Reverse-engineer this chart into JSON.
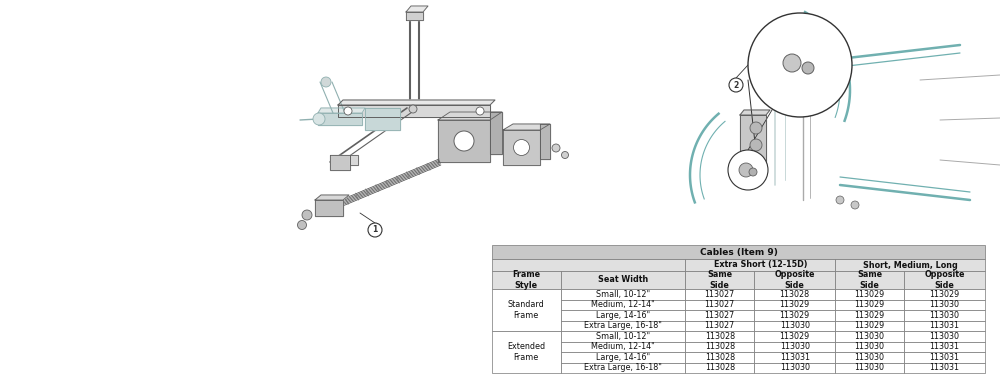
{
  "title": "Cables (Item 9)",
  "rows": [
    [
      "",
      "Small, 10-12\"",
      "113027",
      "113028",
      "113029",
      "113029"
    ],
    [
      "",
      "Medium, 12-14\"",
      "113027",
      "113029",
      "113029",
      "113030"
    ],
    [
      "Standard\nFrame",
      "Large, 14-16\"",
      "113027",
      "113029",
      "113029",
      "113030"
    ],
    [
      "",
      "Extra Large, 16-18\"",
      "113027",
      "113030",
      "113029",
      "113031"
    ],
    [
      "",
      "Small, 10-12\"",
      "113028",
      "113029",
      "113030",
      "113030"
    ],
    [
      "",
      "Medium, 12-14\"",
      "113028",
      "113030",
      "113030",
      "113031"
    ],
    [
      "Extended\nFrame",
      "Large, 14-16\"",
      "113028",
      "113031",
      "113030",
      "113031"
    ],
    [
      "",
      "Extra Large, 16-18\"",
      "113028",
      "113030",
      "113030",
      "113031"
    ]
  ],
  "header_bg": "#c8c8c8",
  "subheader_bg": "#e0e0e0",
  "cell_bg": "#ffffff",
  "border_color": "#777777",
  "font_size": 5.8,
  "title_font_size": 6.5,
  "diagram_color_light": "#c8d8d8",
  "diagram_color_mid": "#90b0b0",
  "diagram_color_dark": "#606060",
  "diagram_teal": "#70b0b0",
  "diagram_gray": "#aaaaaa",
  "callout_color": "#333333"
}
